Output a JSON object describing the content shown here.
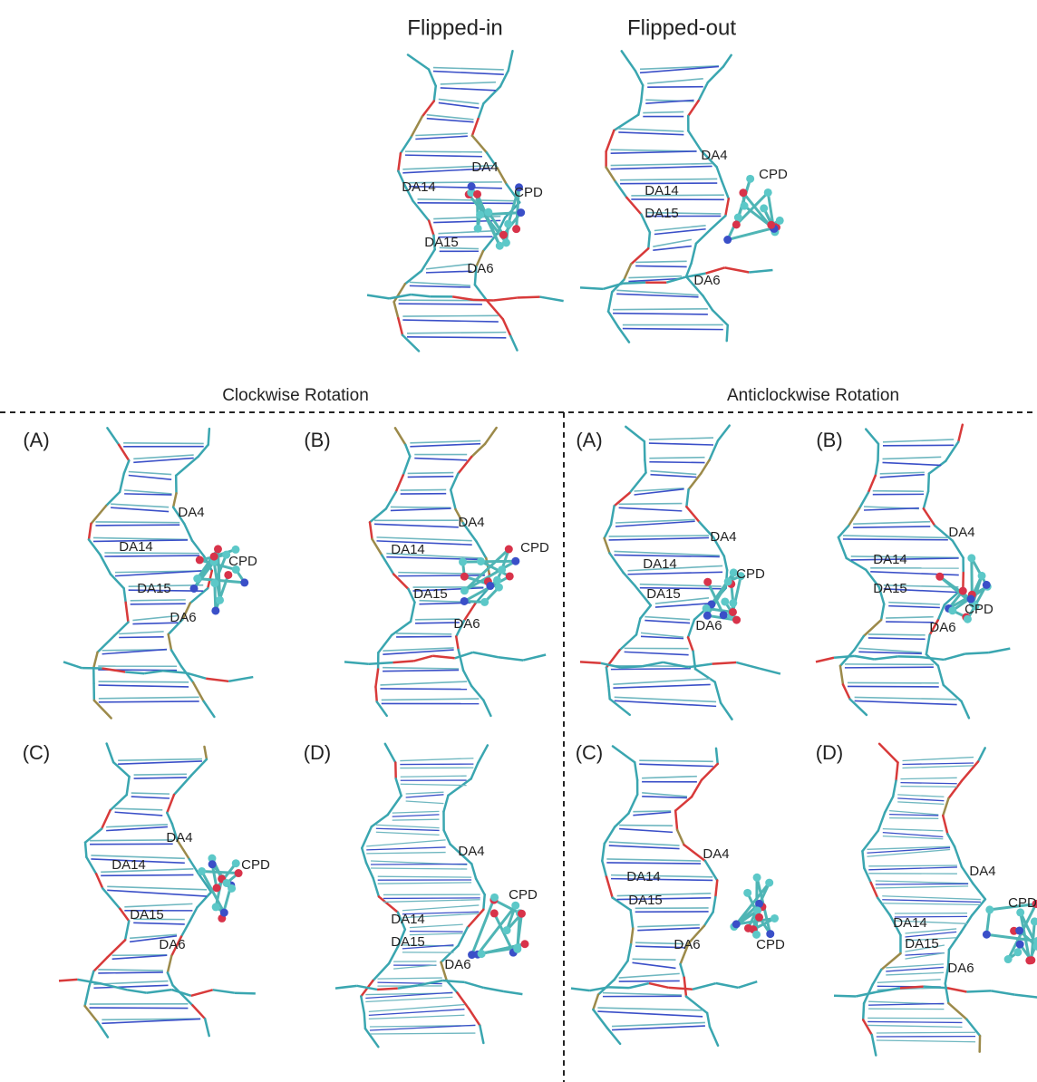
{
  "top": {
    "panels": [
      {
        "title": "Flipped-in",
        "labels": [
          "DA4",
          "DA14",
          "CPD",
          "DA15",
          "DA6"
        ]
      },
      {
        "title": "Flipped-out",
        "labels": [
          "DA4",
          "CPD",
          "DA14",
          "DA15",
          "DA6"
        ]
      }
    ]
  },
  "sections": [
    {
      "title": "Clockwise Rotation",
      "panels": [
        {
          "tag": "(A)",
          "labels": [
            "DA4",
            "DA14",
            "CPD",
            "DA15",
            "DA6"
          ]
        },
        {
          "tag": "(B)",
          "labels": [
            "DA4",
            "CPD",
            "DA14",
            "DA15",
            "DA6"
          ]
        },
        {
          "tag": "(C)",
          "labels": [
            "DA4",
            "CPD",
            "DA14",
            "DA15",
            "DA6"
          ]
        },
        {
          "tag": "(D)",
          "labels": [
            "DA4",
            "CPD",
            "DA14",
            "DA15",
            "DA6"
          ]
        }
      ]
    },
    {
      "title": "Anticlockwise Rotation",
      "panels": [
        {
          "tag": "(A)",
          "labels": [
            "DA4",
            "DA14",
            "CPD",
            "DA15",
            "DA6"
          ]
        },
        {
          "tag": "(B)",
          "labels": [
            "DA4",
            "DA14",
            "DA15",
            "CPD",
            "DA6"
          ]
        },
        {
          "tag": "(C)",
          "labels": [
            "DA4",
            "DA14",
            "DA15",
            "DA6",
            "CPD"
          ]
        },
        {
          "tag": "(D)",
          "labels": [
            "DA4",
            "CPD",
            "DA14",
            "DA15",
            "DA6"
          ]
        }
      ]
    }
  ]
}
